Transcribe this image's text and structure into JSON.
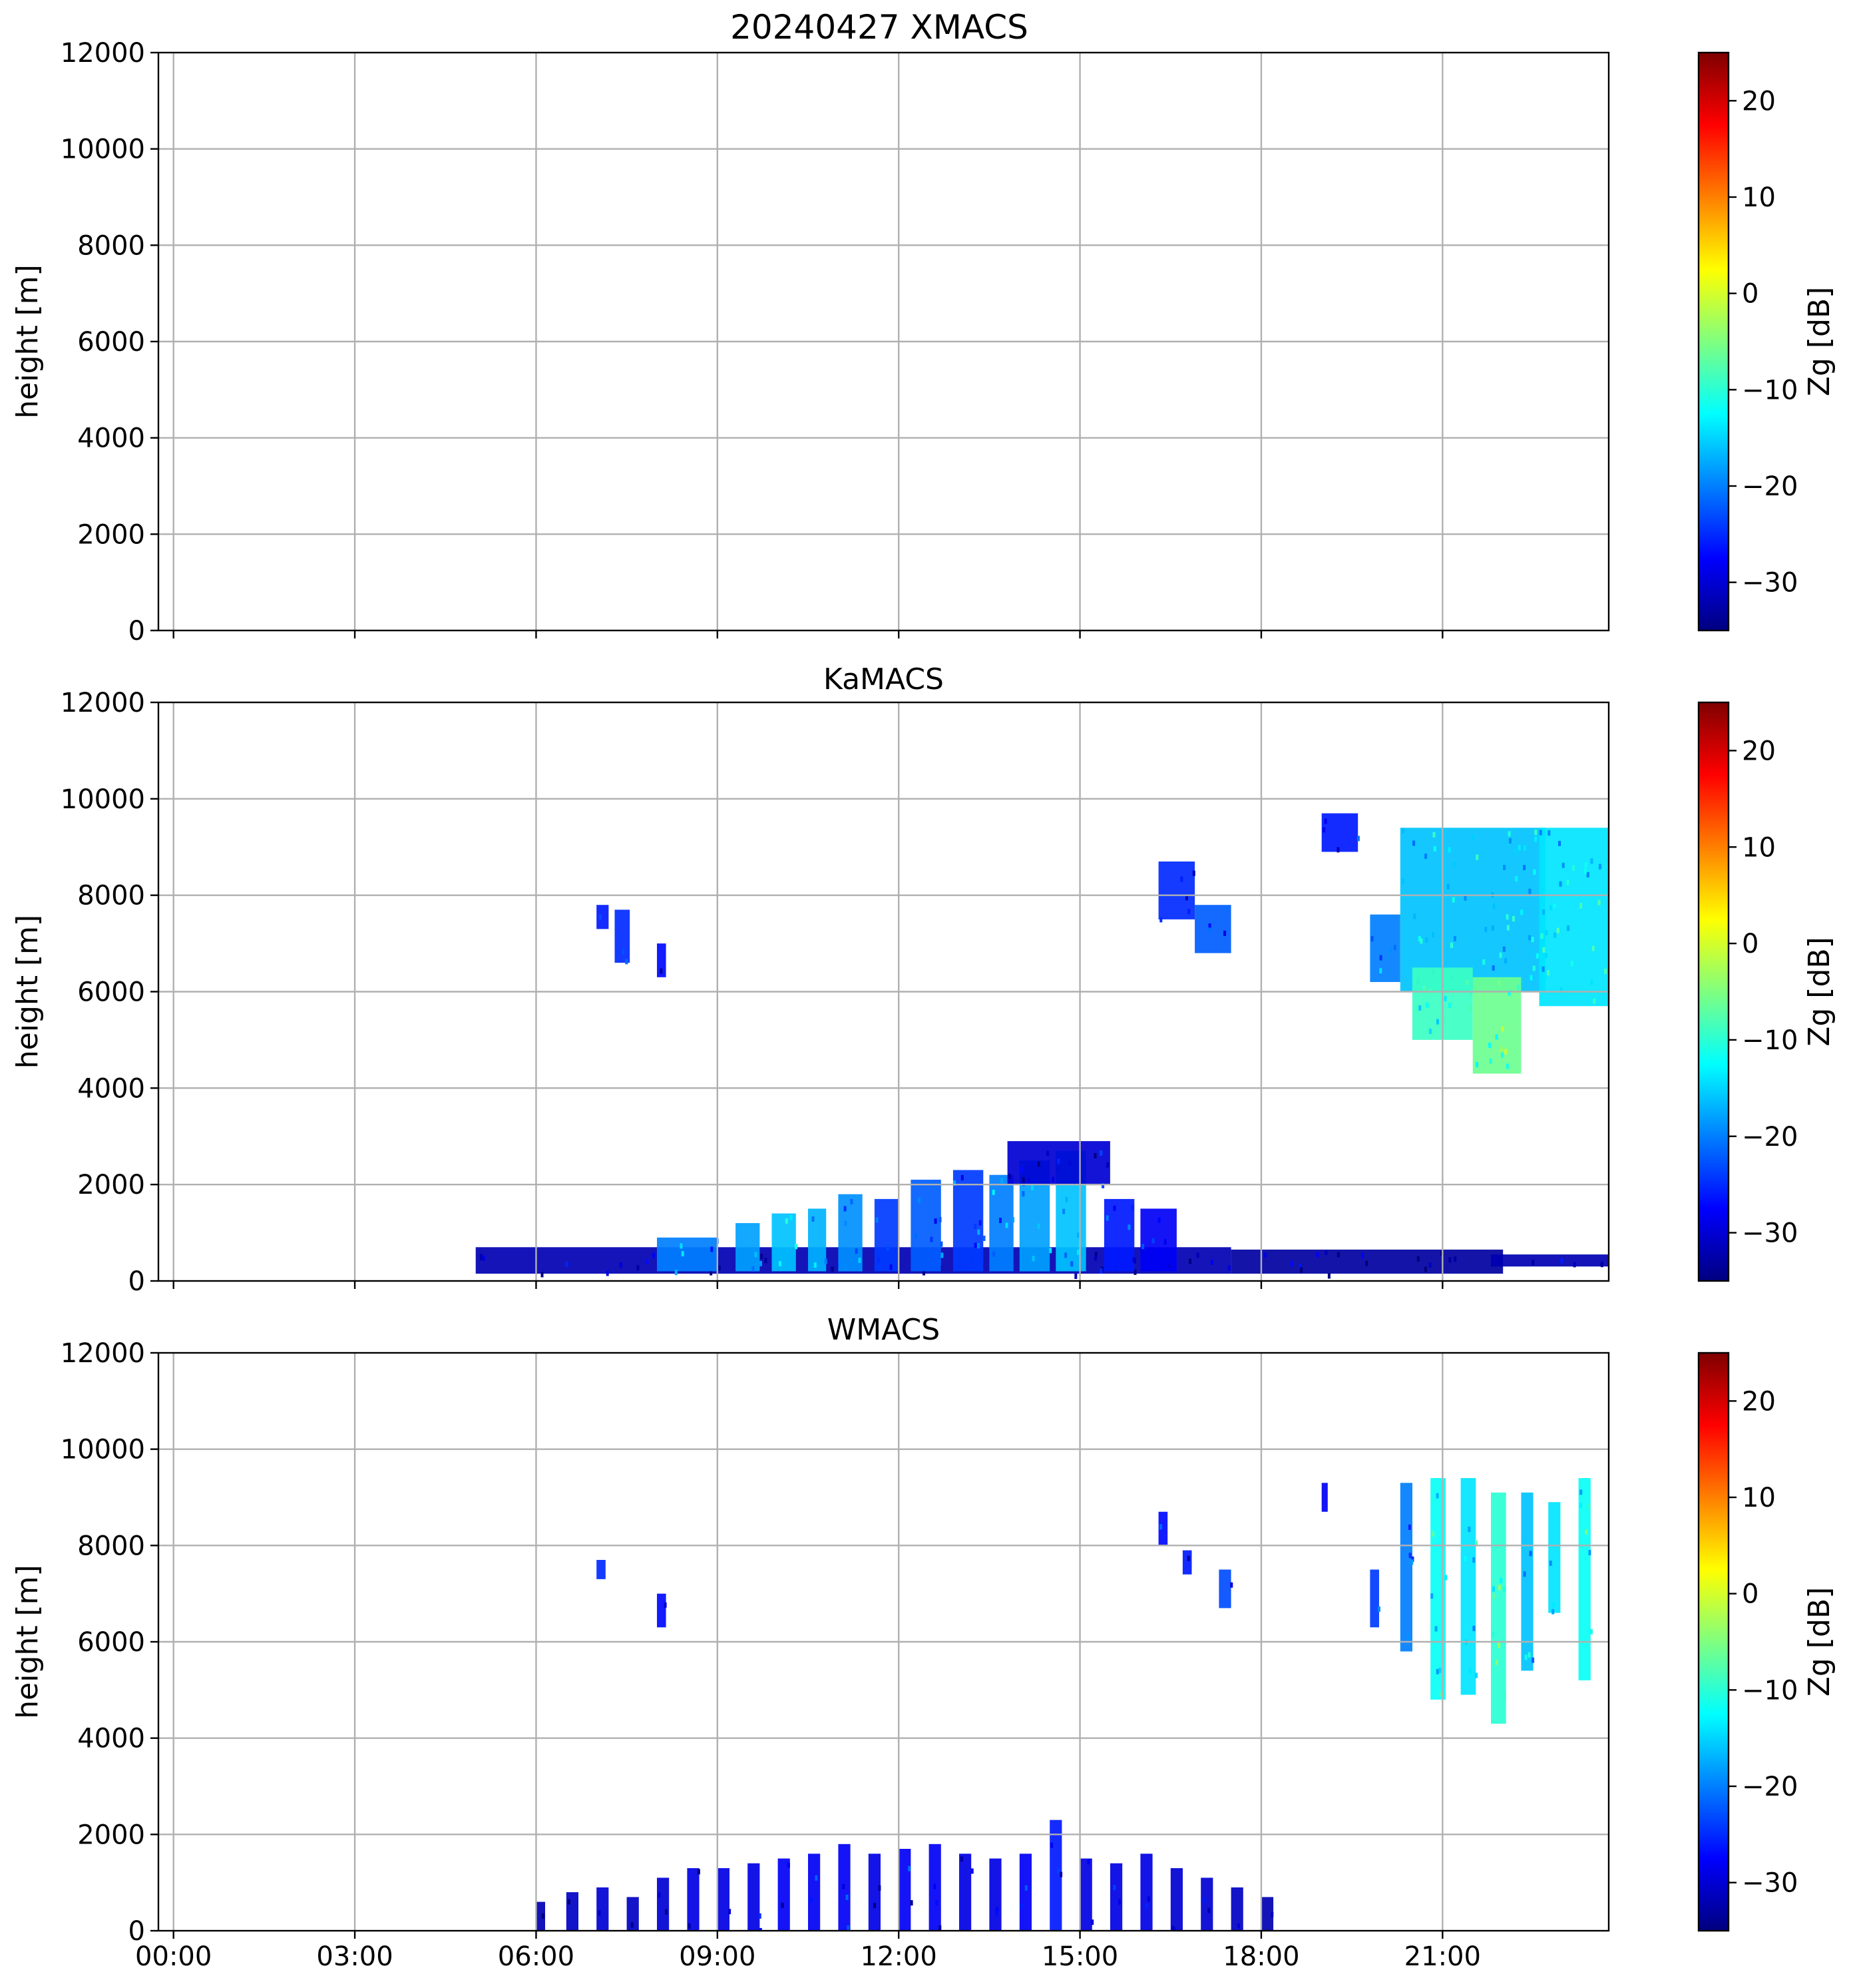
{
  "figure": {
    "title": "20240427 XMACS",
    "x_tick_labels": [
      "00:00",
      "03:00",
      "06:00",
      "09:00",
      "12:00",
      "15:00",
      "18:00",
      "21:00"
    ]
  },
  "colorbar": {
    "label": "Zg [dB]",
    "range": [
      -35,
      25
    ],
    "ticks": [
      -30,
      -20,
      -10,
      0,
      10,
      20
    ],
    "tick_labels": [
      "−30",
      "−20",
      "−10",
      "0",
      "10",
      "20"
    ],
    "colormap": [
      "#00007f",
      "#0000ff",
      "#007fff",
      "#00ffff",
      "#7fff7f",
      "#ffff00",
      "#ff7f00",
      "#ff0000",
      "#7f0000"
    ]
  },
  "chart_data": [
    {
      "type": "heatmap",
      "title": "20240427 XMACS",
      "xlabel": "",
      "ylabel": "height [m]",
      "xlim": [
        -0.25,
        23.75
      ],
      "x_units": "hours UTC",
      "ylim": [
        0,
        12000
      ],
      "yticks": [
        0,
        2000,
        4000,
        6000,
        8000,
        10000,
        12000
      ],
      "grid": true,
      "echoes": []
    },
    {
      "type": "heatmap",
      "title": "KaMACS",
      "xlabel": "",
      "ylabel": "height [m]",
      "xlim": [
        -0.25,
        23.75
      ],
      "x_units": "hours UTC",
      "ylim": [
        0,
        12000
      ],
      "yticks": [
        0,
        2000,
        4000,
        6000,
        8000,
        10000,
        12000
      ],
      "grid": true,
      "echoes": [
        {
          "t0": 5.0,
          "t1": 17.5,
          "z0": 150,
          "z1": 700,
          "zg": -32
        },
        {
          "t0": 17.5,
          "t1": 22.0,
          "z0": 150,
          "z1": 650,
          "zg": -33
        },
        {
          "t0": 21.8,
          "t1": 23.75,
          "z0": 300,
          "z1": 550,
          "zg": -32
        },
        {
          "t0": 8.0,
          "t1": 9.0,
          "z0": 200,
          "z1": 900,
          "zg": -20
        },
        {
          "t0": 9.3,
          "t1": 9.7,
          "z0": 200,
          "z1": 1200,
          "zg": -18
        },
        {
          "t0": 9.9,
          "t1": 10.3,
          "z0": 200,
          "z1": 1400,
          "zg": -16
        },
        {
          "t0": 10.5,
          "t1": 10.8,
          "z0": 200,
          "z1": 1500,
          "zg": -17
        },
        {
          "t0": 11.0,
          "t1": 11.4,
          "z0": 200,
          "z1": 1800,
          "zg": -19
        },
        {
          "t0": 11.6,
          "t1": 12.0,
          "z0": 200,
          "z1": 1700,
          "zg": -24
        },
        {
          "t0": 12.2,
          "t1": 12.7,
          "z0": 200,
          "z1": 2100,
          "zg": -22
        },
        {
          "t0": 12.9,
          "t1": 13.4,
          "z0": 200,
          "z1": 2300,
          "zg": -24
        },
        {
          "t0": 13.5,
          "t1": 13.9,
          "z0": 200,
          "z1": 2200,
          "zg": -20
        },
        {
          "t0": 14.0,
          "t1": 14.5,
          "z0": 200,
          "z1": 2500,
          "zg": -18
        },
        {
          "t0": 14.6,
          "t1": 15.1,
          "z0": 200,
          "z1": 2700,
          "zg": -16
        },
        {
          "t0": 15.4,
          "t1": 15.9,
          "z0": 200,
          "z1": 1700,
          "zg": -26
        },
        {
          "t0": 16.0,
          "t1": 16.6,
          "z0": 200,
          "z1": 1500,
          "zg": -28
        },
        {
          "t0": 13.8,
          "t1": 15.5,
          "z0": 2000,
          "z1": 2900,
          "zg": -30
        },
        {
          "t0": 7.0,
          "t1": 7.2,
          "z0": 7300,
          "z1": 7800,
          "zg": -26
        },
        {
          "t0": 7.3,
          "t1": 7.55,
          "z0": 6600,
          "z1": 7700,
          "zg": -25
        },
        {
          "t0": 8.0,
          "t1": 8.15,
          "z0": 6300,
          "z1": 7000,
          "zg": -27
        },
        {
          "t0": 16.3,
          "t1": 16.9,
          "z0": 7500,
          "z1": 8700,
          "zg": -25
        },
        {
          "t0": 16.9,
          "t1": 17.5,
          "z0": 6800,
          "z1": 7800,
          "zg": -22
        },
        {
          "t0": 19.0,
          "t1": 19.6,
          "z0": 8900,
          "z1": 9700,
          "zg": -26
        },
        {
          "t0": 19.8,
          "t1": 20.3,
          "z0": 6200,
          "z1": 7600,
          "zg": -20
        },
        {
          "t0": 20.3,
          "t1": 22.7,
          "z0": 6000,
          "z1": 9400,
          "zg": -16
        },
        {
          "t0": 20.5,
          "t1": 21.5,
          "z0": 5000,
          "z1": 6500,
          "zg": -9
        },
        {
          "t0": 21.5,
          "t1": 22.3,
          "z0": 4300,
          "z1": 6300,
          "zg": -6
        },
        {
          "t0": 22.6,
          "t1": 23.75,
          "z0": 5700,
          "z1": 9400,
          "zg": -14
        }
      ]
    },
    {
      "type": "heatmap",
      "title": "WMACS",
      "xlabel": "",
      "ylabel": "height [m]",
      "xlim": [
        -0.25,
        23.75
      ],
      "x_units": "hours UTC",
      "ylim": [
        0,
        12000
      ],
      "yticks": [
        0,
        2000,
        4000,
        6000,
        8000,
        10000,
        12000
      ],
      "grid": true,
      "echoes": [
        {
          "t0": 6.0,
          "t1": 6.15,
          "z0": 0,
          "z1": 600,
          "zg": -32
        },
        {
          "t0": 6.5,
          "t1": 6.7,
          "z0": 0,
          "z1": 800,
          "zg": -31
        },
        {
          "t0": 7.0,
          "t1": 7.2,
          "z0": 0,
          "z1": 900,
          "zg": -30
        },
        {
          "t0": 7.5,
          "t1": 7.7,
          "z0": 0,
          "z1": 700,
          "zg": -31
        },
        {
          "t0": 8.0,
          "t1": 8.2,
          "z0": 0,
          "z1": 1100,
          "zg": -30
        },
        {
          "t0": 8.5,
          "t1": 8.7,
          "z0": 0,
          "z1": 1300,
          "zg": -29
        },
        {
          "t0": 9.0,
          "t1": 9.2,
          "z0": 0,
          "z1": 1300,
          "zg": -29
        },
        {
          "t0": 9.5,
          "t1": 9.7,
          "z0": 0,
          "z1": 1400,
          "zg": -29
        },
        {
          "t0": 10.0,
          "t1": 10.2,
          "z0": 0,
          "z1": 1500,
          "zg": -28
        },
        {
          "t0": 10.5,
          "t1": 10.7,
          "z0": 0,
          "z1": 1600,
          "zg": -28
        },
        {
          "t0": 11.0,
          "t1": 11.2,
          "z0": 0,
          "z1": 1800,
          "zg": -28
        },
        {
          "t0": 11.5,
          "t1": 11.7,
          "z0": 0,
          "z1": 1600,
          "zg": -29
        },
        {
          "t0": 12.0,
          "t1": 12.2,
          "z0": 0,
          "z1": 1700,
          "zg": -28
        },
        {
          "t0": 12.5,
          "t1": 12.7,
          "z0": 0,
          "z1": 1800,
          "zg": -28
        },
        {
          "t0": 13.0,
          "t1": 13.2,
          "z0": 0,
          "z1": 1600,
          "zg": -29
        },
        {
          "t0": 13.5,
          "t1": 13.7,
          "z0": 0,
          "z1": 1500,
          "zg": -29
        },
        {
          "t0": 14.0,
          "t1": 14.2,
          "z0": 0,
          "z1": 1600,
          "zg": -28
        },
        {
          "t0": 14.5,
          "t1": 14.7,
          "z0": 0,
          "z1": 2300,
          "zg": -26
        },
        {
          "t0": 15.0,
          "t1": 15.2,
          "z0": 0,
          "z1": 1500,
          "zg": -29
        },
        {
          "t0": 15.5,
          "t1": 15.7,
          "z0": 0,
          "z1": 1400,
          "zg": -29
        },
        {
          "t0": 16.0,
          "t1": 16.2,
          "z0": 0,
          "z1": 1600,
          "zg": -29
        },
        {
          "t0": 16.5,
          "t1": 16.7,
          "z0": 0,
          "z1": 1300,
          "zg": -30
        },
        {
          "t0": 17.0,
          "t1": 17.2,
          "z0": 0,
          "z1": 1100,
          "zg": -30
        },
        {
          "t0": 17.5,
          "t1": 17.7,
          "z0": 0,
          "z1": 900,
          "zg": -31
        },
        {
          "t0": 18.0,
          "t1": 18.2,
          "z0": 0,
          "z1": 700,
          "zg": -32
        },
        {
          "t0": 7.0,
          "t1": 7.15,
          "z0": 7300,
          "z1": 7700,
          "zg": -25
        },
        {
          "t0": 8.0,
          "t1": 8.15,
          "z0": 6300,
          "z1": 7000,
          "zg": -27
        },
        {
          "t0": 16.3,
          "t1": 16.45,
          "z0": 8000,
          "z1": 8700,
          "zg": -27
        },
        {
          "t0": 16.7,
          "t1": 16.85,
          "z0": 7400,
          "z1": 7900,
          "zg": -26
        },
        {
          "t0": 17.3,
          "t1": 17.5,
          "z0": 6700,
          "z1": 7500,
          "zg": -23
        },
        {
          "t0": 19.0,
          "t1": 19.1,
          "z0": 8700,
          "z1": 9300,
          "zg": -28
        },
        {
          "t0": 19.8,
          "t1": 19.95,
          "z0": 6300,
          "z1": 7500,
          "zg": -24
        },
        {
          "t0": 20.3,
          "t1": 20.5,
          "z0": 5800,
          "z1": 9300,
          "zg": -20
        },
        {
          "t0": 20.8,
          "t1": 21.05,
          "z0": 4800,
          "z1": 9400,
          "zg": -12
        },
        {
          "t0": 21.3,
          "t1": 21.55,
          "z0": 4900,
          "z1": 9400,
          "zg": -14
        },
        {
          "t0": 21.8,
          "t1": 22.05,
          "z0": 4300,
          "z1": 9100,
          "zg": -10
        },
        {
          "t0": 22.3,
          "t1": 22.5,
          "z0": 5400,
          "z1": 9100,
          "zg": -16
        },
        {
          "t0": 22.75,
          "t1": 22.95,
          "z0": 6600,
          "z1": 8900,
          "zg": -14
        },
        {
          "t0": 23.25,
          "t1": 23.45,
          "z0": 5200,
          "z1": 9400,
          "zg": -12
        }
      ]
    }
  ]
}
